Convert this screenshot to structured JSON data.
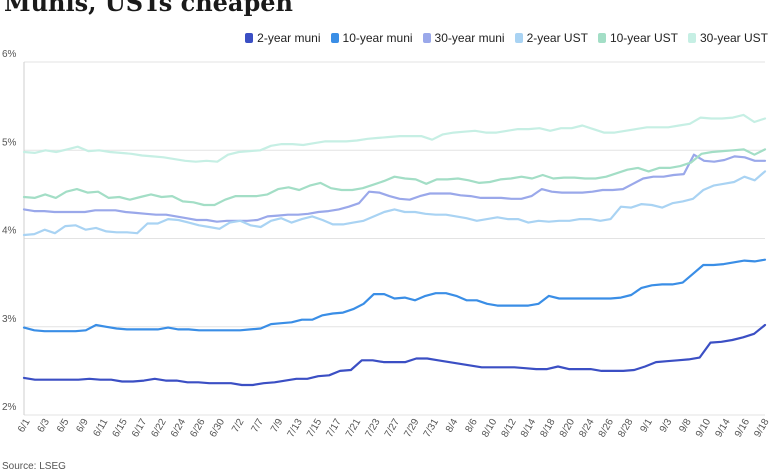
{
  "title": "Munis, USTs cheapen",
  "source": "Source: LSEG",
  "chart_data": {
    "type": "line",
    "title": "Munis, USTs cheapen",
    "xlabel": "",
    "ylabel": "",
    "x_tick_labels": [
      "6/1",
      "6/3",
      "6/5",
      "6/9",
      "6/11",
      "6/15",
      "6/17",
      "6/22",
      "6/24",
      "6/26",
      "6/30",
      "7/2",
      "7/7",
      "7/9",
      "7/13",
      "7/15",
      "7/17",
      "7/21",
      "7/23",
      "7/27",
      "7/29",
      "7/31",
      "8/4",
      "8/6",
      "8/10",
      "8/12",
      "8/14",
      "8/18",
      "8/20",
      "8/24",
      "8/26",
      "8/28",
      "9/1",
      "9/3",
      "9/8",
      "9/10",
      "9/14",
      "9/16",
      "9/18"
    ],
    "y_ticks": [
      2,
      3,
      4,
      5,
      6
    ],
    "y_tick_labels": [
      "2%",
      "3%",
      "4%",
      "5%",
      "6%"
    ],
    "ylim": [
      2,
      6
    ],
    "grid": "horizontal",
    "legend_position": "top-right",
    "series": [
      {
        "name": "2-year muni",
        "color": "#3b4fc4",
        "values": [
          2.42,
          2.4,
          2.4,
          2.4,
          2.4,
          2.4,
          2.41,
          2.4,
          2.4,
          2.38,
          2.38,
          2.39,
          2.41,
          2.39,
          2.39,
          2.37,
          2.37,
          2.36,
          2.36,
          2.36,
          2.34,
          2.34,
          2.36,
          2.37,
          2.39,
          2.41,
          2.41,
          2.44,
          2.45,
          2.5,
          2.51,
          2.62,
          2.62,
          2.6,
          2.6,
          2.6,
          2.64,
          2.64,
          2.62,
          2.6,
          2.58,
          2.56,
          2.54,
          2.54,
          2.54,
          2.54,
          2.53,
          2.52,
          2.52,
          2.55,
          2.52,
          2.52,
          2.52,
          2.5,
          2.5,
          2.5,
          2.51,
          2.55,
          2.6,
          2.61,
          2.62,
          2.63,
          2.65,
          2.82,
          2.83,
          2.85,
          2.88,
          2.92,
          3.02
        ]
      },
      {
        "name": "10-year muni",
        "color": "#3a8ee6",
        "values": [
          2.99,
          2.96,
          2.95,
          2.95,
          2.95,
          2.95,
          2.96,
          3.02,
          3.0,
          2.98,
          2.97,
          2.97,
          2.97,
          2.97,
          2.99,
          2.97,
          2.97,
          2.96,
          2.96,
          2.96,
          2.96,
          2.96,
          2.97,
          2.98,
          3.03,
          3.04,
          3.05,
          3.08,
          3.08,
          3.13,
          3.15,
          3.16,
          3.2,
          3.26,
          3.37,
          3.37,
          3.32,
          3.33,
          3.3,
          3.35,
          3.38,
          3.38,
          3.35,
          3.3,
          3.3,
          3.26,
          3.24,
          3.24,
          3.24,
          3.24,
          3.26,
          3.35,
          3.32,
          3.32,
          3.32,
          3.32,
          3.32,
          3.32,
          3.33,
          3.36,
          3.44,
          3.47,
          3.48,
          3.48,
          3.5,
          3.6,
          3.7,
          3.7,
          3.71,
          3.73,
          3.75,
          3.74,
          3.76
        ]
      },
      {
        "name": "30-year muni",
        "color": "#9aa8ea",
        "values": [
          4.33,
          4.31,
          4.31,
          4.3,
          4.3,
          4.3,
          4.3,
          4.32,
          4.32,
          4.32,
          4.3,
          4.29,
          4.28,
          4.27,
          4.27,
          4.25,
          4.23,
          4.21,
          4.21,
          4.19,
          4.2,
          4.2,
          4.2,
          4.21,
          4.25,
          4.26,
          4.27,
          4.27,
          4.28,
          4.3,
          4.31,
          4.33,
          4.36,
          4.4,
          4.53,
          4.52,
          4.48,
          4.45,
          4.44,
          4.48,
          4.51,
          4.51,
          4.51,
          4.49,
          4.48,
          4.46,
          4.46,
          4.46,
          4.45,
          4.45,
          4.48,
          4.56,
          4.53,
          4.52,
          4.52,
          4.52,
          4.53,
          4.55,
          4.55,
          4.56,
          4.62,
          4.68,
          4.7,
          4.7,
          4.72,
          4.73,
          4.95,
          4.88,
          4.87,
          4.89,
          4.93,
          4.92,
          4.88,
          4.88
        ]
      },
      {
        "name": "2-year UST",
        "color": "#a9d3f3",
        "values": [
          4.04,
          4.05,
          4.1,
          4.06,
          4.14,
          4.15,
          4.1,
          4.12,
          4.08,
          4.07,
          4.07,
          4.06,
          4.17,
          4.17,
          4.22,
          4.21,
          4.18,
          4.15,
          4.13,
          4.11,
          4.18,
          4.2,
          4.15,
          4.13,
          4.2,
          4.23,
          4.18,
          4.22,
          4.25,
          4.21,
          4.16,
          4.16,
          4.18,
          4.2,
          4.25,
          4.3,
          4.33,
          4.3,
          4.3,
          4.28,
          4.27,
          4.27,
          4.25,
          4.23,
          4.2,
          4.22,
          4.24,
          4.22,
          4.22,
          4.18,
          4.2,
          4.19,
          4.2,
          4.2,
          4.22,
          4.22,
          4.2,
          4.22,
          4.36,
          4.35,
          4.39,
          4.38,
          4.35,
          4.4,
          4.42,
          4.45,
          4.55,
          4.6,
          4.62,
          4.64,
          4.7,
          4.66,
          4.76
        ]
      },
      {
        "name": "10-year UST",
        "color": "#a3dec6",
        "values": [
          4.47,
          4.46,
          4.5,
          4.46,
          4.53,
          4.56,
          4.52,
          4.53,
          4.46,
          4.47,
          4.44,
          4.47,
          4.5,
          4.47,
          4.48,
          4.42,
          4.41,
          4.38,
          4.38,
          4.44,
          4.48,
          4.48,
          4.48,
          4.5,
          4.56,
          4.58,
          4.55,
          4.6,
          4.63,
          4.57,
          4.55,
          4.55,
          4.57,
          4.61,
          4.65,
          4.7,
          4.68,
          4.67,
          4.62,
          4.67,
          4.67,
          4.68,
          4.66,
          4.63,
          4.64,
          4.67,
          4.68,
          4.7,
          4.68,
          4.72,
          4.68,
          4.69,
          4.69,
          4.68,
          4.68,
          4.7,
          4.74,
          4.78,
          4.8,
          4.76,
          4.8,
          4.8,
          4.82,
          4.86,
          4.96,
          4.98,
          4.99,
          5.0,
          5.01,
          4.95,
          5.01
        ]
      },
      {
        "name": "30-year UST",
        "color": "#c6efe4",
        "values": [
          4.98,
          4.97,
          5.0,
          4.98,
          5.01,
          5.04,
          4.99,
          5.0,
          4.98,
          4.97,
          4.96,
          4.94,
          4.93,
          4.92,
          4.9,
          4.88,
          4.87,
          4.88,
          4.87,
          4.95,
          4.98,
          4.99,
          5.0,
          5.05,
          5.07,
          5.07,
          5.06,
          5.08,
          5.1,
          5.1,
          5.1,
          5.11,
          5.13,
          5.14,
          5.15,
          5.16,
          5.16,
          5.16,
          5.12,
          5.18,
          5.2,
          5.21,
          5.22,
          5.2,
          5.2,
          5.22,
          5.24,
          5.24,
          5.25,
          5.22,
          5.25,
          5.25,
          5.28,
          5.24,
          5.2,
          5.2,
          5.22,
          5.24,
          5.26,
          5.26,
          5.26,
          5.28,
          5.3,
          5.37,
          5.36,
          5.36,
          5.37,
          5.4,
          5.32,
          5.36
        ]
      }
    ]
  }
}
